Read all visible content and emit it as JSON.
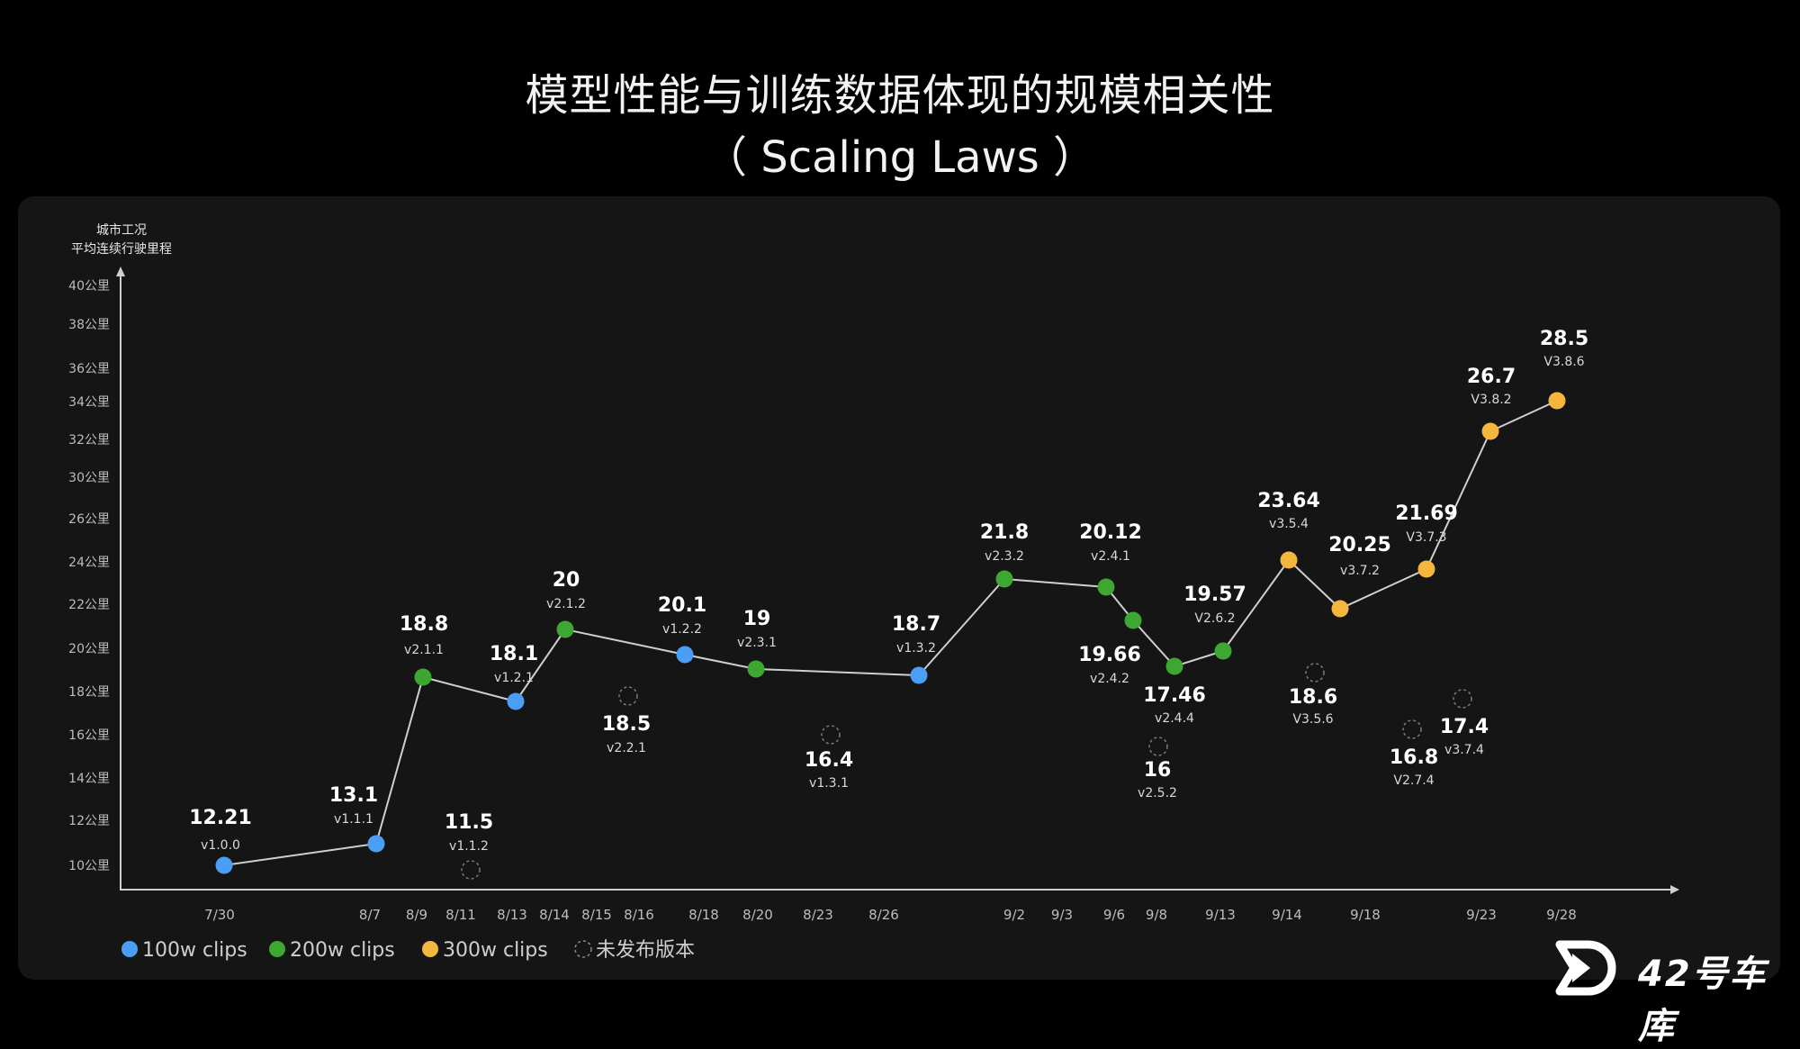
{
  "title": "模型性能与训练数据体现的规模相关性",
  "subtitle": "（ Scaling Laws ）",
  "watermark": "42号车库",
  "chart_data": {
    "type": "line",
    "ylabel": [
      "城市工况",
      "平均连续行驶里程"
    ],
    "yticks": [
      "10公里",
      "12公里",
      "14公里",
      "16公里",
      "18公里",
      "20公里",
      "22公里",
      "24公里",
      "26公里",
      "30公里",
      "32公里",
      "34公里",
      "36公里",
      "38公里",
      "40公里"
    ],
    "xticks": [
      "7/30",
      "8/7",
      "8/9",
      "8/11",
      "8/13",
      "8/14",
      "8/15",
      "8/16",
      "8/18",
      "8/20",
      "8/23",
      "8/26",
      "9/2",
      "9/3",
      "9/6",
      "9/8",
      "9/13",
      "9/14",
      "9/18",
      "9/23",
      "9/28"
    ],
    "legend": [
      {
        "label": "100w clips",
        "color": "#4a9ff5",
        "style": "filled"
      },
      {
        "label": "200w clips",
        "color": "#3ca832",
        "style": "filled"
      },
      {
        "label": "300w clips",
        "color": "#f5b63d",
        "style": "filled"
      },
      {
        "label": "未发布版本",
        "color": "#777777",
        "style": "dashed"
      }
    ],
    "released": [
      {
        "value": "12.21",
        "version": "v1.0.0",
        "group": "100w clips"
      },
      {
        "value": "13.1",
        "version": "v1.1.1",
        "group": "100w clips"
      },
      {
        "value": "18.8",
        "version": "v2.1.1",
        "group": "200w clips"
      },
      {
        "value": "18.1",
        "version": "v1.2.1",
        "group": "100w clips"
      },
      {
        "value": "20",
        "version": "v2.1.2",
        "group": "200w clips"
      },
      {
        "value": "20.1",
        "version": "v1.2.2",
        "group": "100w clips"
      },
      {
        "value": "19",
        "version": "v2.3.1",
        "group": "200w clips"
      },
      {
        "value": "18.7",
        "version": "v1.3.2",
        "group": "100w clips"
      },
      {
        "value": "21.8",
        "version": "v2.3.2",
        "group": "200w clips"
      },
      {
        "value": "20.12",
        "version": "v2.4.1",
        "group": "200w clips"
      },
      {
        "value": "19.66",
        "version": "v2.4.2",
        "group": "200w clips"
      },
      {
        "value": "17.46",
        "version": "v2.4.4",
        "group": "200w clips"
      },
      {
        "value": "19.57",
        "version": "V2.6.2",
        "group": "200w clips"
      },
      {
        "value": "23.64",
        "version": "v3.5.4",
        "group": "300w clips"
      },
      {
        "value": "20.25",
        "version": "v3.7.2",
        "group": "300w clips"
      },
      {
        "value": "21.69",
        "version": "V3.7.3",
        "group": "300w clips"
      },
      {
        "value": "26.7",
        "version": "V3.8.2",
        "group": "300w clips"
      },
      {
        "value": "28.5",
        "version": "V3.8.6",
        "group": "300w clips"
      }
    ],
    "unreleased": [
      {
        "value": "11.5",
        "version": "v1.1.2"
      },
      {
        "value": "18.5",
        "version": "v2.2.1"
      },
      {
        "value": "16.4",
        "version": "v1.3.1"
      },
      {
        "value": "16",
        "version": "v2.5.2"
      },
      {
        "value": "18.6",
        "version": "V3.5.6"
      },
      {
        "value": "16.8",
        "version": "V2.7.4"
      },
      {
        "value": "17.4",
        "version": "v3.7.4"
      }
    ]
  }
}
